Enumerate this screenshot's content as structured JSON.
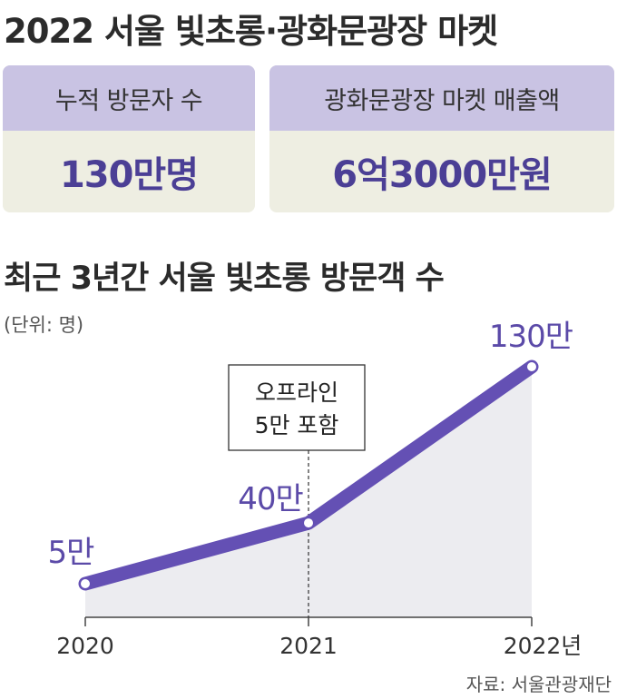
{
  "title": "2022 서울 빛초롱·광화문광장 마켓",
  "stats": [
    {
      "label": "누적 방문자 수",
      "value": "130만명"
    },
    {
      "label": "광화문광장 마켓 매출액",
      "value": "6억3000만원"
    }
  ],
  "chart_data": {
    "type": "area",
    "title": "최근 3년간 서울 빛초롱 방문객 수",
    "unit": "(단위: 명)",
    "x": [
      "2020",
      "2021",
      "2022년"
    ],
    "values": [
      50000,
      400000,
      1300000
    ],
    "data_labels": [
      "5만",
      "40만",
      "130만"
    ],
    "annotation": {
      "x_index": 1,
      "lines": [
        "오프라인",
        "5만 포함"
      ]
    },
    "grid": false,
    "colors": {
      "line": "#6450b4",
      "area": "#ececf0",
      "label": "#5b4aa8"
    }
  },
  "source": "자료: 서울관광재단"
}
